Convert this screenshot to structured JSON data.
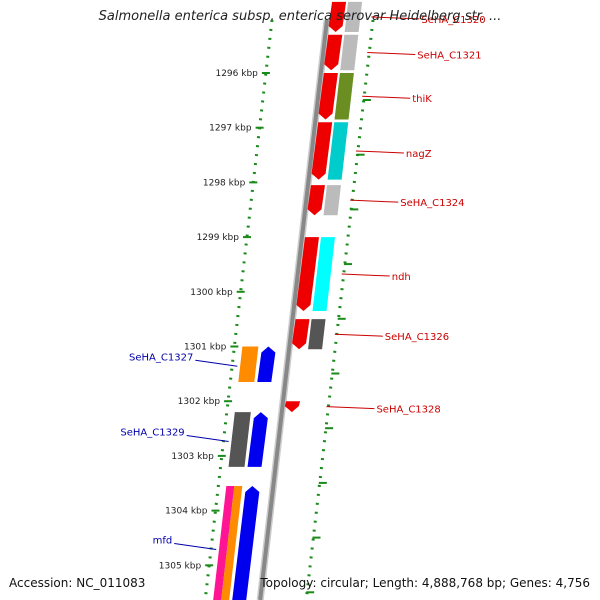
{
  "title": "Salmonella enterica subsp. enterica serovar Heidelberg str. ...",
  "accession": "Accession: NC_011083",
  "topology": "Topology: circular; Length: 4,888,768 bp; Genes: 4,756",
  "colors": {
    "right_label": "#cc0000",
    "left_label": "#0000aa",
    "tick": "#1a8a1a",
    "backbone": "#888888"
  },
  "kbp_ticks": [
    {
      "kbp": 1296,
      "label": "1296 kbp"
    },
    {
      "kbp": 1297,
      "label": "1297 kbp"
    },
    {
      "kbp": 1298,
      "label": "1298 kbp"
    },
    {
      "kbp": 1299,
      "label": "1299 kbp"
    },
    {
      "kbp": 1300,
      "label": "1300 kbp"
    },
    {
      "kbp": 1301,
      "label": "1301 kbp"
    },
    {
      "kbp": 1302,
      "label": "1302 kbp"
    },
    {
      "kbp": 1303,
      "label": "1303 kbp"
    },
    {
      "kbp": 1304,
      "label": "1304 kbp"
    },
    {
      "kbp": 1305,
      "label": "1305 kbp"
    }
  ],
  "right_genes": [
    {
      "name": "SeHA_C1320",
      "start": 1294.7,
      "end": 1295.25,
      "cog": "#bbbbbb",
      "label": true
    },
    {
      "name": "SeHA_C1321",
      "start": 1295.3,
      "end": 1295.95,
      "cog": "#bbbbbb",
      "label": true
    },
    {
      "name": "thiK",
      "start": 1296.0,
      "end": 1296.85,
      "cog": "#6b8e23",
      "label": true
    },
    {
      "name": "nagZ",
      "start": 1296.9,
      "end": 1297.95,
      "cog": "#00cccc",
      "label": true
    },
    {
      "name": "SeHA_C1324",
      "start": 1298.05,
      "end": 1298.6,
      "cog": "#bbbbbb",
      "label": true
    },
    {
      "name": "ndh",
      "start": 1299.0,
      "end": 1300.35,
      "cog": "#00ffff",
      "label": true
    },
    {
      "name": "SeHA_C1326",
      "start": 1300.5,
      "end": 1301.05,
      "cog": "#555555",
      "label": true
    },
    {
      "name": "SeHA_C1328",
      "start": 1302.0,
      "end": 1302.2,
      "cog": "",
      "label": true
    }
  ],
  "left_genes": [
    {
      "name": "SeHA_C1327",
      "start": 1301.0,
      "end": 1301.65,
      "cog": "#ff8c00",
      "label": true
    },
    {
      "name": "SeHA_C1329",
      "start": 1302.2,
      "end": 1303.2,
      "cog": "#555555",
      "label": true
    },
    {
      "name": "mfd",
      "start": 1303.55,
      "end": 1305.8,
      "cog": "#ff8c00",
      "cog2": "#ff1493",
      "label": true
    }
  ]
}
